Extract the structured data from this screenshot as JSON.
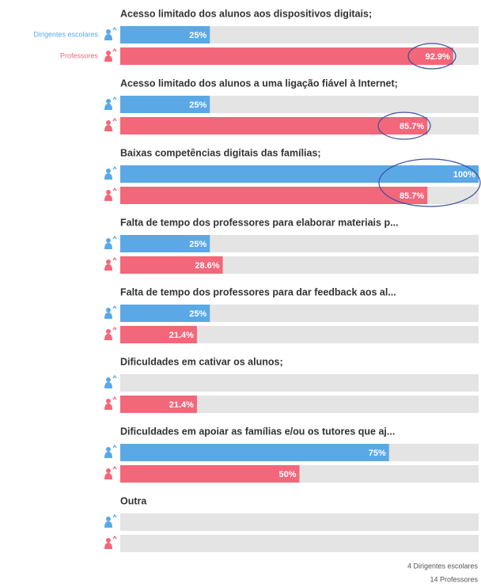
{
  "chart_data": {
    "type": "bar",
    "orientation": "horizontal",
    "categories": [
      "Acesso limitado dos alunos aos dispositivos digitais;",
      "Acesso limitado dos alunos a uma ligação fiável à Internet;",
      "Baixas competências digitais das famílias;",
      "Falta de tempo dos professores para elaborar materiais p...",
      "Falta de tempo dos professores para dar feedback aos al...",
      "Dificuldades em cativar os alunos;",
      "Dificuldades em apoiar as famílias e/ou os tutores que aj...",
      "Outra"
    ],
    "series": [
      {
        "name": "Dirigentes escolares",
        "color": "#5aa9e6",
        "values": [
          25,
          25,
          100,
          25,
          25,
          0,
          75,
          0
        ],
        "value_labels": [
          "25%",
          "25%",
          "100%",
          "25%",
          "25%",
          null,
          "75%",
          null
        ]
      },
      {
        "name": "Professores",
        "color": "#f2677a",
        "values": [
          92.9,
          85.7,
          85.7,
          28.6,
          21.4,
          21.4,
          50,
          0
        ],
        "value_labels": [
          "92.9%",
          "85.7%",
          "85.7%",
          "28.6%",
          "21.4%",
          "21.4%",
          "50%",
          null
        ]
      }
    ],
    "xlim": [
      0,
      100
    ],
    "footer": [
      "4 Dirigentes escolares",
      "14 Professores"
    ]
  }
}
